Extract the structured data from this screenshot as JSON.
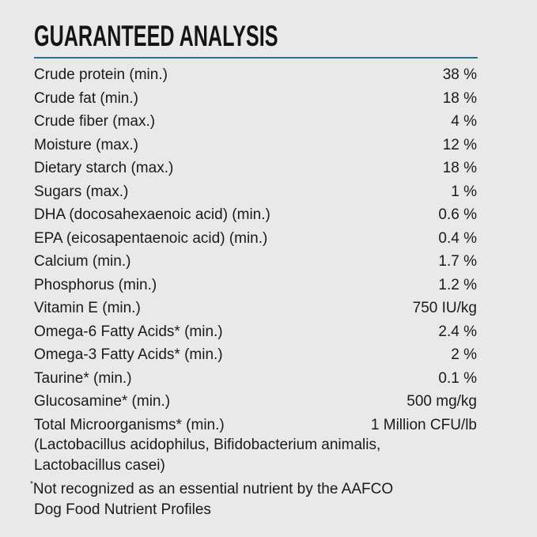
{
  "title": "GUARANTEED ANALYSIS",
  "colors": {
    "rule": "#2d6f8e",
    "background": "#e9e9e9"
  },
  "rows": [
    {
      "label": "Crude protein (min.)",
      "value": "38 %"
    },
    {
      "label": "Crude fat (min.)",
      "value": "18 %"
    },
    {
      "label": "Crude fiber (max.)",
      "value": "4 %"
    },
    {
      "label": "Moisture (max.)",
      "value": "12 %"
    },
    {
      "label": "Dietary starch (max.)",
      "value": "18 %"
    },
    {
      "label": "Sugars (max.)",
      "value": "1 %"
    },
    {
      "label": "DHA (docosahexaenoic acid) (min.)",
      "value": "0.6 %"
    },
    {
      "label": "EPA (eicosapentaenoic acid) (min.)",
      "value": "0.4 %"
    },
    {
      "label": "Calcium (min.)",
      "value": "1.7 %"
    },
    {
      "label": "Phosphorus (min.)",
      "value": "1.2 %"
    },
    {
      "label": "Vitamin E (min.)",
      "value": "750 IU/kg"
    },
    {
      "label": "Omega-6 Fatty Acids* (min.)",
      "value": "2.4 %"
    },
    {
      "label": "Omega-3 Fatty Acids* (min.)",
      "value": "2 %"
    },
    {
      "label": "Taurine* (min.)",
      "value": "0.1 %"
    },
    {
      "label": "Glucosamine* (min.)",
      "value": "500 mg/kg"
    },
    {
      "label": "Total Microorganisms* (min.)",
      "value": "1 Million CFU/lb"
    }
  ],
  "microorganisms_note": [
    "(Lactobacillus acidophilus, Bifidobacterium animalis,",
    "Lactobacillus casei)"
  ],
  "footnote": {
    "marker": "*",
    "line1": "Not recognized as an essential nutrient by the AAFCO",
    "line2": "Dog Food Nutrient Profiles"
  }
}
